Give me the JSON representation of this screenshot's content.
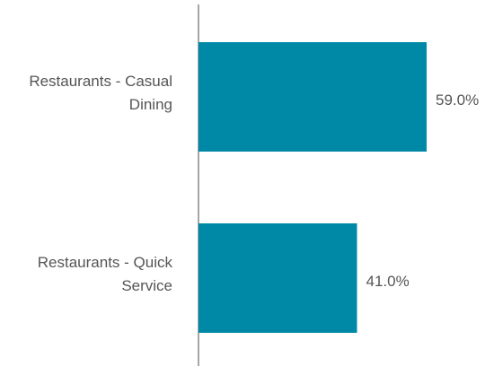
{
  "chart_data": {
    "type": "bar",
    "orientation": "horizontal",
    "categories": [
      "Restaurants - Casual Dining",
      "Restaurants - Quick Service"
    ],
    "values": [
      59.0,
      41.0
    ],
    "value_labels": [
      "59.0%",
      "41.0%"
    ],
    "color": "#0089a6"
  }
}
